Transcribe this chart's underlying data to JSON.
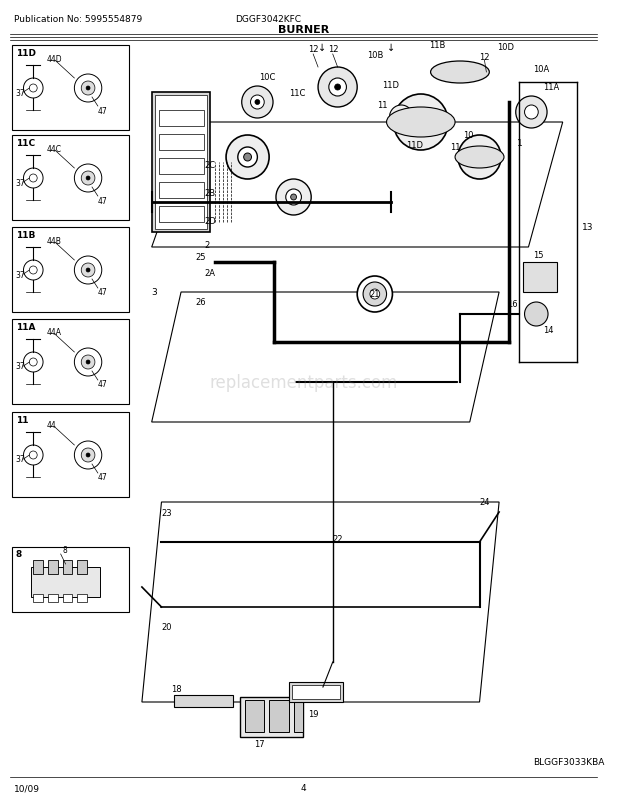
{
  "title": "BURNER",
  "pub_no": "Publication No: 5995554879",
  "model": "DGGF3042KFC",
  "date": "10/09",
  "page": "4",
  "diagram_code": "BLGGF3033KBA",
  "watermark": "replacementparts.com",
  "bg_color": "#ffffff",
  "border_color": "#000000",
  "text_color": "#000000",
  "figure_bg": "#f5f5f5"
}
